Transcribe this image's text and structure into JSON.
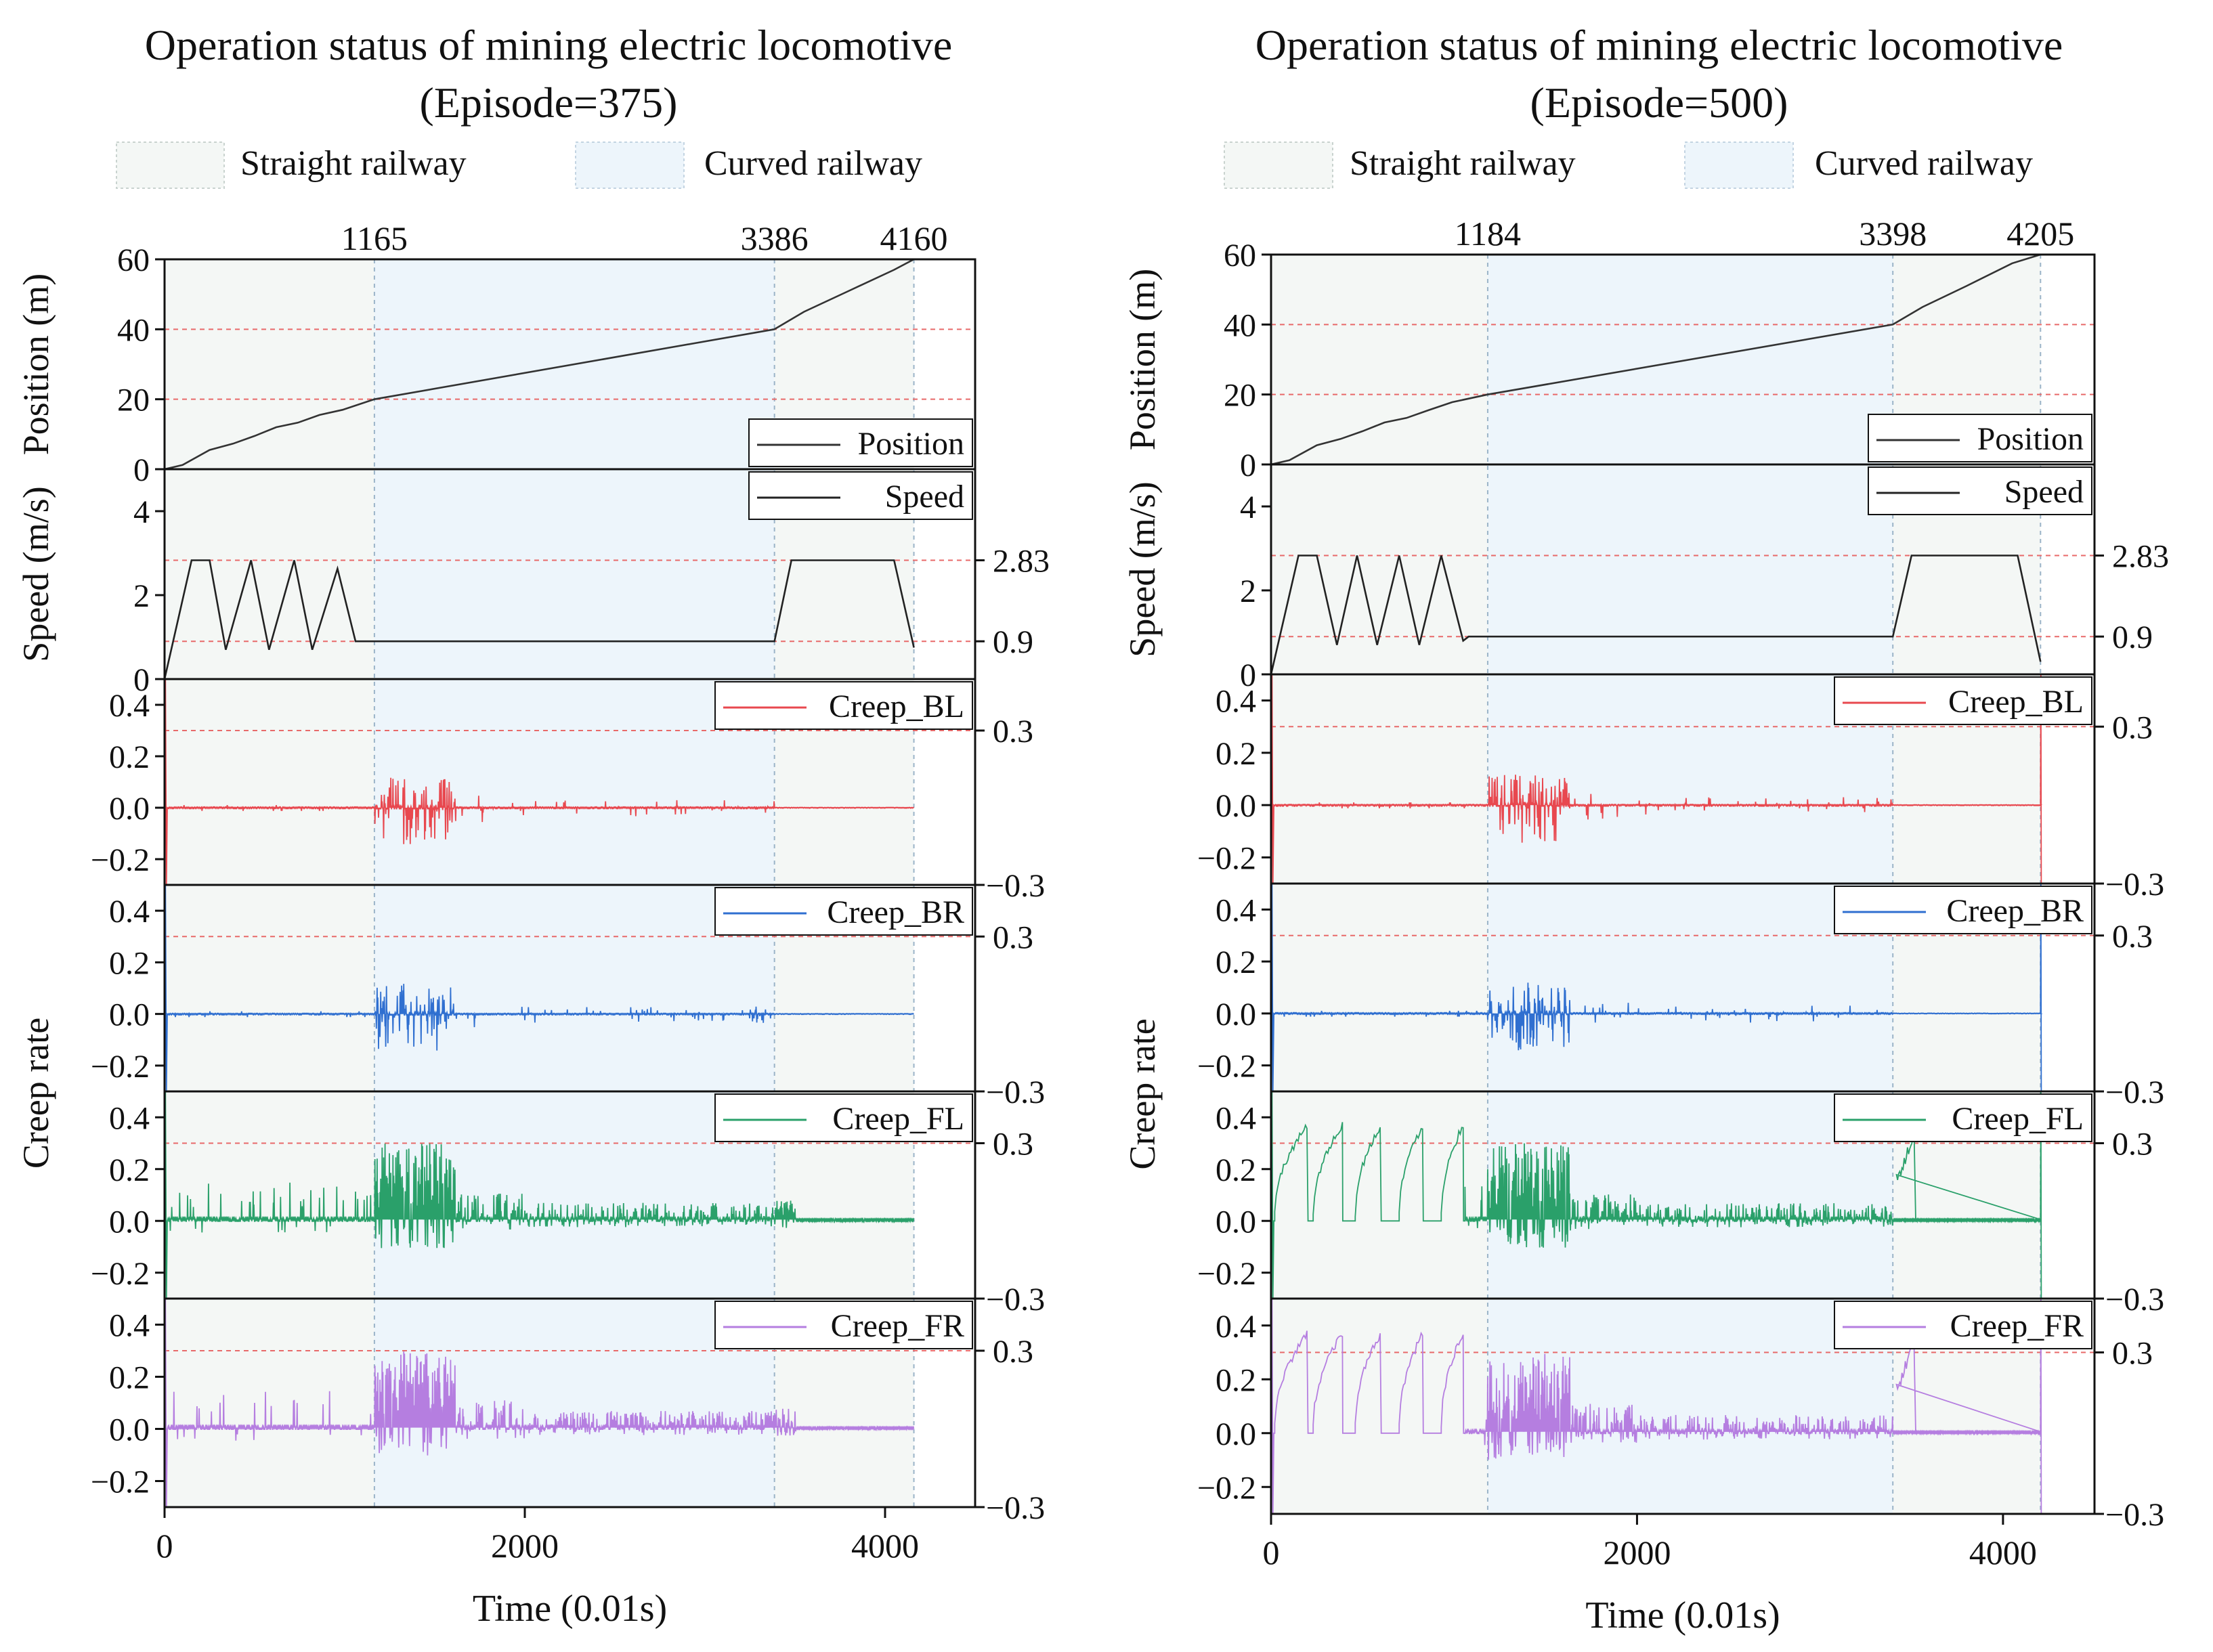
{
  "page_title": "Operation status of mining electric locomotive",
  "legend": {
    "straight": "Straight railway",
    "curved": "Curved railway"
  },
  "colors": {
    "straight_fill": "#f4f7f5",
    "curved_fill": "#edf5fb",
    "position": "#333333",
    "speed": "#222222",
    "creep_bl": "#e8484f",
    "creep_br": "#2f6fd0",
    "creep_fl": "#2aa06a",
    "creep_fr": "#b57ee0",
    "ref_line": "#e86a6a"
  },
  "chart_data": [
    {
      "type": "line",
      "title": "Operation status of mining electric locomotive",
      "subtitle": "(Episode=375)",
      "xlabel": "Time (0.01s)",
      "xlim": [
        0,
        4500
      ],
      "xticks": [
        "0",
        "2000",
        "4000"
      ],
      "boundaries": [
        1165,
        3386,
        4160
      ],
      "boundary_labels": [
        "1165",
        "3386",
        "4160"
      ],
      "panels": {
        "position": {
          "ylabel": "Position (m)",
          "legend": "Position",
          "ylim": [
            0,
            60
          ],
          "yticks": [
            "0",
            "20",
            "40",
            "60"
          ],
          "ref_lines": [
            20,
            40
          ],
          "series": [
            [
              0,
              0
            ],
            [
              100,
              1.2
            ],
            [
              250,
              5.5
            ],
            [
              380,
              7.3
            ],
            [
              500,
              9.5
            ],
            [
              620,
              12
            ],
            [
              740,
              13.3
            ],
            [
              860,
              15.5
            ],
            [
              990,
              17
            ],
            [
              1165,
              20
            ],
            [
              3386,
              40
            ],
            [
              3550,
              45
            ],
            [
              3800,
              51
            ],
            [
              4050,
              57
            ],
            [
              4160,
              60
            ]
          ]
        },
        "speed": {
          "ylabel": "Speed (m/s)",
          "legend": "Speed",
          "ylim": [
            0,
            5
          ],
          "yticks": [
            "0",
            "2",
            "4"
          ],
          "right_ticks": [
            "2.83",
            "0.9"
          ],
          "ref_lines": [
            2.83,
            0.9
          ],
          "series": [
            [
              0,
              0
            ],
            [
              150,
              2.83
            ],
            [
              250,
              2.83
            ],
            [
              340,
              0.7
            ],
            [
              480,
              2.83
            ],
            [
              580,
              0.7
            ],
            [
              720,
              2.83
            ],
            [
              820,
              0.7
            ],
            [
              960,
              2.63
            ],
            [
              1060,
              0.9
            ],
            [
              3386,
              0.9
            ],
            [
              3480,
              2.83
            ],
            [
              4050,
              2.83
            ],
            [
              4160,
              0.75
            ]
          ]
        },
        "creep": {
          "ylabel": "Creep rate",
          "ylim": [
            -0.3,
            0.5
          ],
          "yticks": [
            "0.4",
            "0.2",
            "0.0",
            "−0.2"
          ],
          "right_ticks": [
            "0.3",
            "−0.3"
          ],
          "series_names": [
            "Creep_BL",
            "Creep_BR",
            "Creep_FL",
            "Creep_FR"
          ]
        }
      }
    },
    {
      "type": "line",
      "title": "Operation status of mining electric locomotive",
      "subtitle": "(Episode=500)",
      "xlabel": "Time (0.01s)",
      "xlim": [
        0,
        4500
      ],
      "xticks": [
        "0",
        "2000",
        "4000"
      ],
      "boundaries": [
        1184,
        3398,
        4205
      ],
      "boundary_labels": [
        "1184",
        "3398",
        "4205"
      ],
      "panels": {
        "position": {
          "ylabel": "Position (m)",
          "legend": "Position",
          "ylim": [
            0,
            60
          ],
          "yticks": [
            "0",
            "20",
            "40",
            "60"
          ],
          "ref_lines": [
            20,
            40
          ],
          "series": [
            [
              0,
              0
            ],
            [
              100,
              1.2
            ],
            [
              250,
              5.5
            ],
            [
              380,
              7.3
            ],
            [
              500,
              9.5
            ],
            [
              620,
              12
            ],
            [
              740,
              13.3
            ],
            [
              860,
              15.5
            ],
            [
              990,
              17.8
            ],
            [
              1184,
              20
            ],
            [
              3398,
              40
            ],
            [
              3560,
              45
            ],
            [
              3800,
              51
            ],
            [
              4050,
              57.5
            ],
            [
              4205,
              60
            ]
          ]
        },
        "speed": {
          "ylabel": "Speed (m/s)",
          "legend": "Speed",
          "ylim": [
            0,
            5
          ],
          "yticks": [
            "0",
            "2",
            "4"
          ],
          "right_ticks": [
            "2.83",
            "0.9"
          ],
          "ref_lines": [
            2.83,
            0.9
          ],
          "series": [
            [
              0,
              0
            ],
            [
              150,
              2.83
            ],
            [
              250,
              2.83
            ],
            [
              360,
              0.7
            ],
            [
              470,
              2.83
            ],
            [
              580,
              0.7
            ],
            [
              700,
              2.83
            ],
            [
              810,
              0.7
            ],
            [
              930,
              2.83
            ],
            [
              1050,
              0.8
            ],
            [
              1080,
              0.9
            ],
            [
              3398,
              0.9
            ],
            [
              3500,
              2.83
            ],
            [
              4080,
              2.83
            ],
            [
              4205,
              0.3
            ]
          ]
        },
        "creep": {
          "ylabel": "Creep rate",
          "ylim": [
            -0.3,
            0.5
          ],
          "yticks": [
            "0.4",
            "0.2",
            "0.0",
            "−0.2"
          ],
          "right_ticks": [
            "0.3",
            "−0.3"
          ],
          "series_names": [
            "Creep_BL",
            "Creep_BR",
            "Creep_FL",
            "Creep_FR"
          ]
        }
      }
    }
  ]
}
